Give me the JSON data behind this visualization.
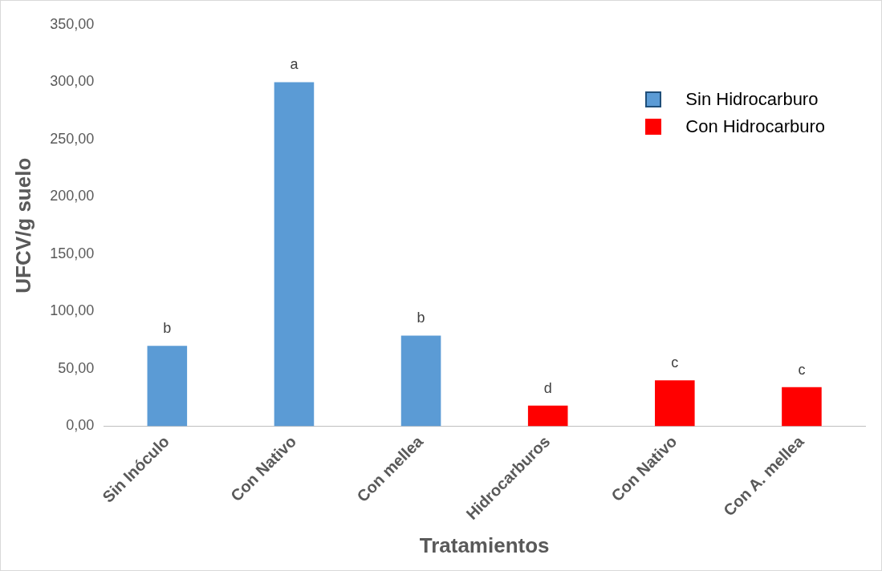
{
  "chart_data": {
    "type": "bar",
    "xlabel": "Tratamientos",
    "ylabel": "UFCV/g suelo",
    "categories": [
      "Sin Inóculo",
      "Con Nativo",
      "Con mellea",
      "Hidrocarburos",
      "Con Nativo",
      "Con A. mellea"
    ],
    "series": [
      {
        "name": "Sin Hidrocarburo",
        "color": "#5b9bd5",
        "values": [
          70,
          300,
          79,
          null,
          null,
          null
        ],
        "value_labels": [
          "b",
          "a",
          "b",
          null,
          null,
          null
        ]
      },
      {
        "name": "Con Hidrocarburo",
        "color": "#ff0000",
        "values": [
          null,
          null,
          null,
          18,
          40,
          34
        ],
        "value_labels": [
          null,
          null,
          null,
          "d",
          "c",
          "c"
        ]
      }
    ],
    "ylim": [
      0,
      350
    ],
    "yticks": [
      {
        "value": 0,
        "label": "0,00"
      },
      {
        "value": 50,
        "label": "50,00"
      },
      {
        "value": 100,
        "label": "100,00"
      },
      {
        "value": 150,
        "label": "150,00"
      },
      {
        "value": 200,
        "label": "200,00"
      },
      {
        "value": 250,
        "label": "250,00"
      },
      {
        "value": 300,
        "label": "300,00"
      },
      {
        "value": 350,
        "label": "350,00"
      }
    ],
    "grid": false,
    "legend": "top right"
  }
}
